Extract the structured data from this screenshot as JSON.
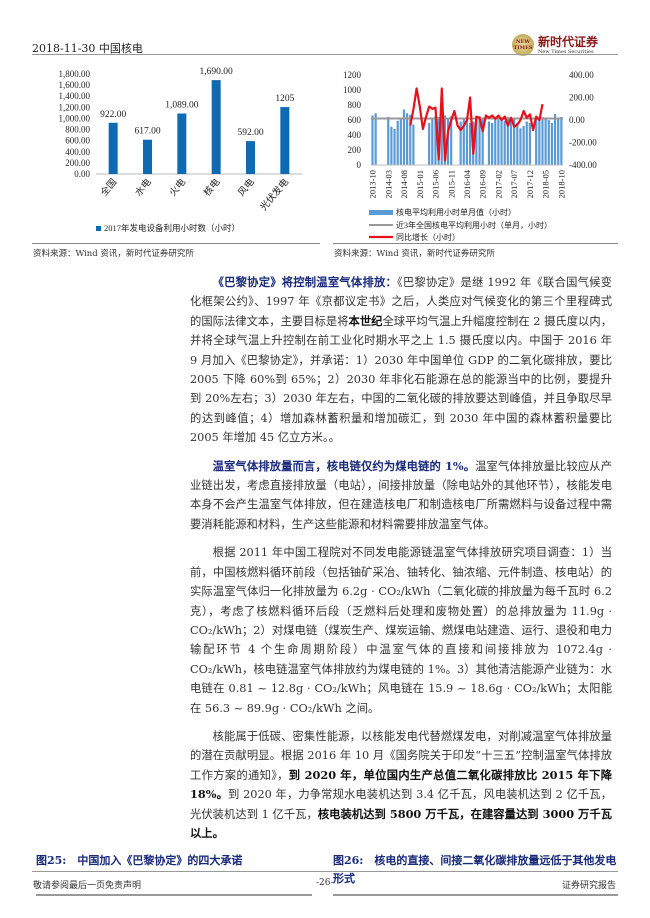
{
  "header": {
    "date_title": "2018-11-30 中国核电",
    "logo_cn": "新时代证券",
    "logo_en": "New Times Securities",
    "logo_badge": "NEW TIMES"
  },
  "colors": {
    "bar": "#0f6ab4",
    "bar_light": "#5b9bd5",
    "avg_line": "#999999",
    "yoy_line": "#e8101a",
    "caption": "#1a2a7a"
  },
  "chart_data": [
    {
      "type": "bar",
      "categories": [
        "全国",
        "水电",
        "火电",
        "核电",
        "风电",
        "光伏发电"
      ],
      "values": [
        922,
        617,
        1089,
        1690,
        592,
        1205
      ],
      "data_labels": [
        "922.00",
        "617.00",
        "1,089.00",
        "1,690.00",
        "592.00",
        "1205"
      ],
      "yticks": [
        "0.00",
        "200.00",
        "400.00",
        "600.00",
        "800.00",
        "1,000.00",
        "1,200.00",
        "1,400.00",
        "1,600.00",
        "1,800.00"
      ],
      "ylim": [
        0,
        1800
      ],
      "series": [
        {
          "name": "2017年发电设备利用小时数（小时）"
        }
      ],
      "legend": "bottom",
      "grid": false
    },
    {
      "type": "bar+line",
      "x_ticks": [
        "2013-10",
        "2014-03",
        "2014-08",
        "2015-01",
        "2015-06",
        "2015-11",
        "2016-04",
        "2016-09",
        "2017-02",
        "2017-07",
        "2017-12",
        "2018-05",
        "2018-10"
      ],
      "left_yticks": [
        "0",
        "200",
        "400",
        "600",
        "800",
        "1000",
        "1200"
      ],
      "left_ylim": [
        0,
        1200
      ],
      "right_yticks": [
        "-400.00",
        "-200.00",
        "0.00",
        "200.00",
        "400.00"
      ],
      "right_ylim": [
        -400,
        400
      ],
      "months_start": "2013-10",
      "months_end": "2018-10",
      "series": [
        {
          "name": "核电平均利用小时单月值（小时）",
          "axis": "left",
          "type": "bar",
          "values": [
            660,
            690,
            null,
            null,
            null,
            640,
            510,
            480,
            590,
            610,
            740,
            690,
            670,
            540,
            null,
            null,
            null,
            null,
            560,
            620,
            650,
            640,
            680,
            660,
            620,
            650,
            null,
            null,
            580,
            610,
            600,
            560,
            580,
            600,
            650,
            620,
            null,
            580,
            560,
            600,
            640,
            610,
            590,
            640,
            600,
            610,
            560,
            490,
            520,
            580,
            560,
            null,
            620,
            600,
            640,
            610,
            600,
            560,
            680,
            620,
            640
          ]
        },
        {
          "name": "近3年全国核电平均利用小时（单月，小时）",
          "axis": "left",
          "type": "line",
          "value": 620
        },
        {
          "name": "同比增长（小时）",
          "axis": "right",
          "type": "line",
          "values": [
            null,
            null,
            null,
            null,
            null,
            null,
            null,
            null,
            null,
            null,
            null,
            null,
            -50,
            100,
            280,
            120,
            -80,
            30,
            120,
            100,
            110,
            -350,
            280,
            -360,
            -100,
            0,
            80,
            -50,
            -90,
            -50,
            0,
            200,
            -300,
            30,
            20,
            -100,
            40,
            20,
            40,
            10,
            40,
            0,
            30,
            -50,
            20,
            -60,
            -40,
            0,
            80,
            20,
            50,
            -90,
            30,
            0,
            140,
            null,
            null,
            null,
            null,
            null,
            null
          ]
        }
      ],
      "legend": "bottom",
      "grid": false
    }
  ],
  "left_source": "资料来源：Wind 资讯，新时代证券研究所",
  "right_source": "资料来源：Wind 资讯，新时代证券研究所",
  "paragraphs": [
    [
      {
        "t": "《巴黎协定》将控制温室气体排放：",
        "s": "bb"
      },
      {
        "t": "《巴黎协定》是继 1992 年《联合国气候变化框架公约》、1997 年《京都议定书》之后，人类应对气候变化的第三个里程碑式的国际法律文本，主要目标是将"
      },
      {
        "t": "本世纪",
        "s": "b"
      },
      {
        "t": "全球平均气温上升幅度控制在 2 摄氏度以内，并将全球气温上升控制在前工业化时期水平之上 1.5 摄氏度以内。中国于 2016 年 9 月加入《巴黎协定》，并承诺：1）2030 年中国单位 GDP 的二氧化碳排放，要比 2005 下降 60%到 65%；2）2030 年非化石能源在总的能源当中的比例，要提升到 20%左右；3）2030 年左右，中国的二氧化碳的排放要达到峰值，并且争取尽早的达到峰值；4）增加森林蓄积量和增加碳汇，到 2030 年中国的森林蓄积量要比 2005 年增加 45 亿立方米。。"
      }
    ],
    [
      {
        "t": "温室气体排放量而言，核电链仅约为煤电链的 1%。",
        "s": "bb"
      },
      {
        "t": "温室气体排放量比较应从产业链出发，考虑直接排放量（电站），间接排放量（除电站外的其他环节），核能发电本身不会产生温室气体排放，但在建造核电厂和制造核电厂所需燃料与设备过程中需要消耗能源和材料，生产这些能源和材料需要排放温室气体。"
      }
    ],
    [
      {
        "t": "根据 2011 年中国工程院对不同发电能源链温室气体排放研究项目调查：1）当前，中国核燃料循环前段（包括铀矿采冶、铀转化、铀浓缩、元件制造、核电站）的实际温室气体归一化排放量为 6.2g · CO₂/kWh（二氧化碳的排放量为每千瓦时 6.2 克），考虑了核燃料循环后段（乏燃料后处理和废物处置）的总排放量为 11.9g · CO₂/kWh；2）对煤电链（煤炭生产、煤炭运输、燃煤电站建造、运行、退役和电力输配环节 4 个生命周期阶段）中温室气体的直接和间接排放为 1072.4g · CO₂/kWh，核电链温室气体排放约为煤电链的 1%。3）其他清洁能源产业链为：水电链在 0.81 ~ 12.8g · CO₂/kWh；风电链在 15.9 ~ 18.6g · CO₂/kWh；太阳能在 56.3 ~ 89.9g · CO₂/kWh 之间。"
      }
    ],
    [
      {
        "t": "核能属于低碳、密集性能源，以核能发电代替燃煤发电，对削减温室气体排放量的潜在贡献明显。根据 2016 年 10 月《国务院关于印发“十三五”控制温室气体排放工作方案的通知》，"
      },
      {
        "t": "到 2020 年，单位国内生产总值二氧化碳排放比 2015 年下降 18%。",
        "s": "b"
      },
      {
        "t": "到 2020 年，力争常规水电装机达到 3.4 亿千瓦，风电装机达到 2 亿千瓦，光伏装机达到 1 亿千瓦，"
      },
      {
        "t": "核电装机达到 5800 万千瓦，在建容量达到 3000 万千瓦以上。",
        "s": "b"
      }
    ]
  ],
  "captions": {
    "fig25": "图25:　中国加入《巴黎协定》的四大承诺",
    "fig26": "图26:　核电的直接、间接二氧化碳排放量远低于其他发电形式"
  },
  "footer": {
    "left": "敬请参阅最后一页免责声明",
    "center": "-26-",
    "right": "证券研究报告"
  }
}
